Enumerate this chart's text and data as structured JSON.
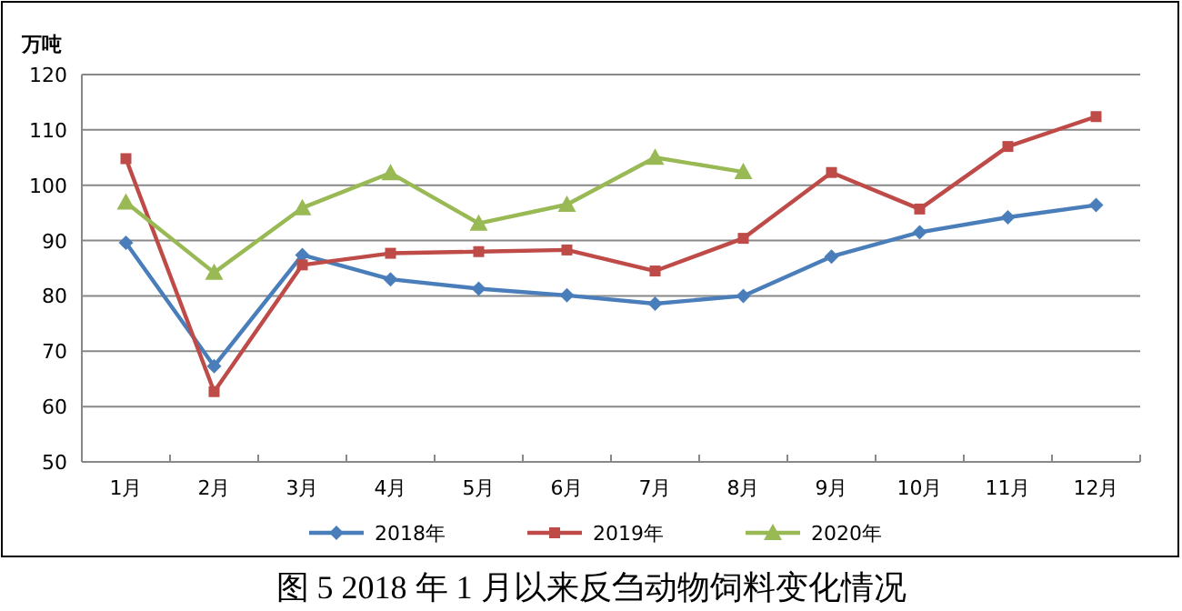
{
  "chart_data": {
    "type": "line",
    "title": "图 5   2018 年 1 月以来反刍动物饲料变化情况",
    "ylabel": "万吨",
    "categories": [
      "1月",
      "2月",
      "3月",
      "4月",
      "5月",
      "6月",
      "7月",
      "8月",
      "9月",
      "10月",
      "11月",
      "12月"
    ],
    "series": [
      {
        "name": "2018年",
        "color": "#4a7ebb",
        "marker": "diamond",
        "values": [
          89.6,
          67.3,
          87.4,
          83.0,
          81.3,
          80.1,
          78.6,
          80.0,
          87.1,
          91.5,
          94.2,
          96.4
        ]
      },
      {
        "name": "2019年",
        "color": "#be4b48",
        "marker": "square",
        "values": [
          104.8,
          62.7,
          85.6,
          87.7,
          88.0,
          88.3,
          84.5,
          90.4,
          102.3,
          95.7,
          107.0,
          112.4
        ]
      },
      {
        "name": "2020年",
        "color": "#98b954",
        "marker": "triangle",
        "values": [
          96.9,
          84.2,
          95.9,
          102.2,
          93.1,
          96.5,
          105.0,
          102.4,
          null,
          null,
          null,
          null
        ]
      }
    ],
    "ylim": [
      50,
      120
    ],
    "yticks": [
      50,
      60,
      70,
      80,
      90,
      100,
      110,
      120
    ],
    "grid": "y",
    "legend": "bottom",
    "line_style": "solid"
  }
}
